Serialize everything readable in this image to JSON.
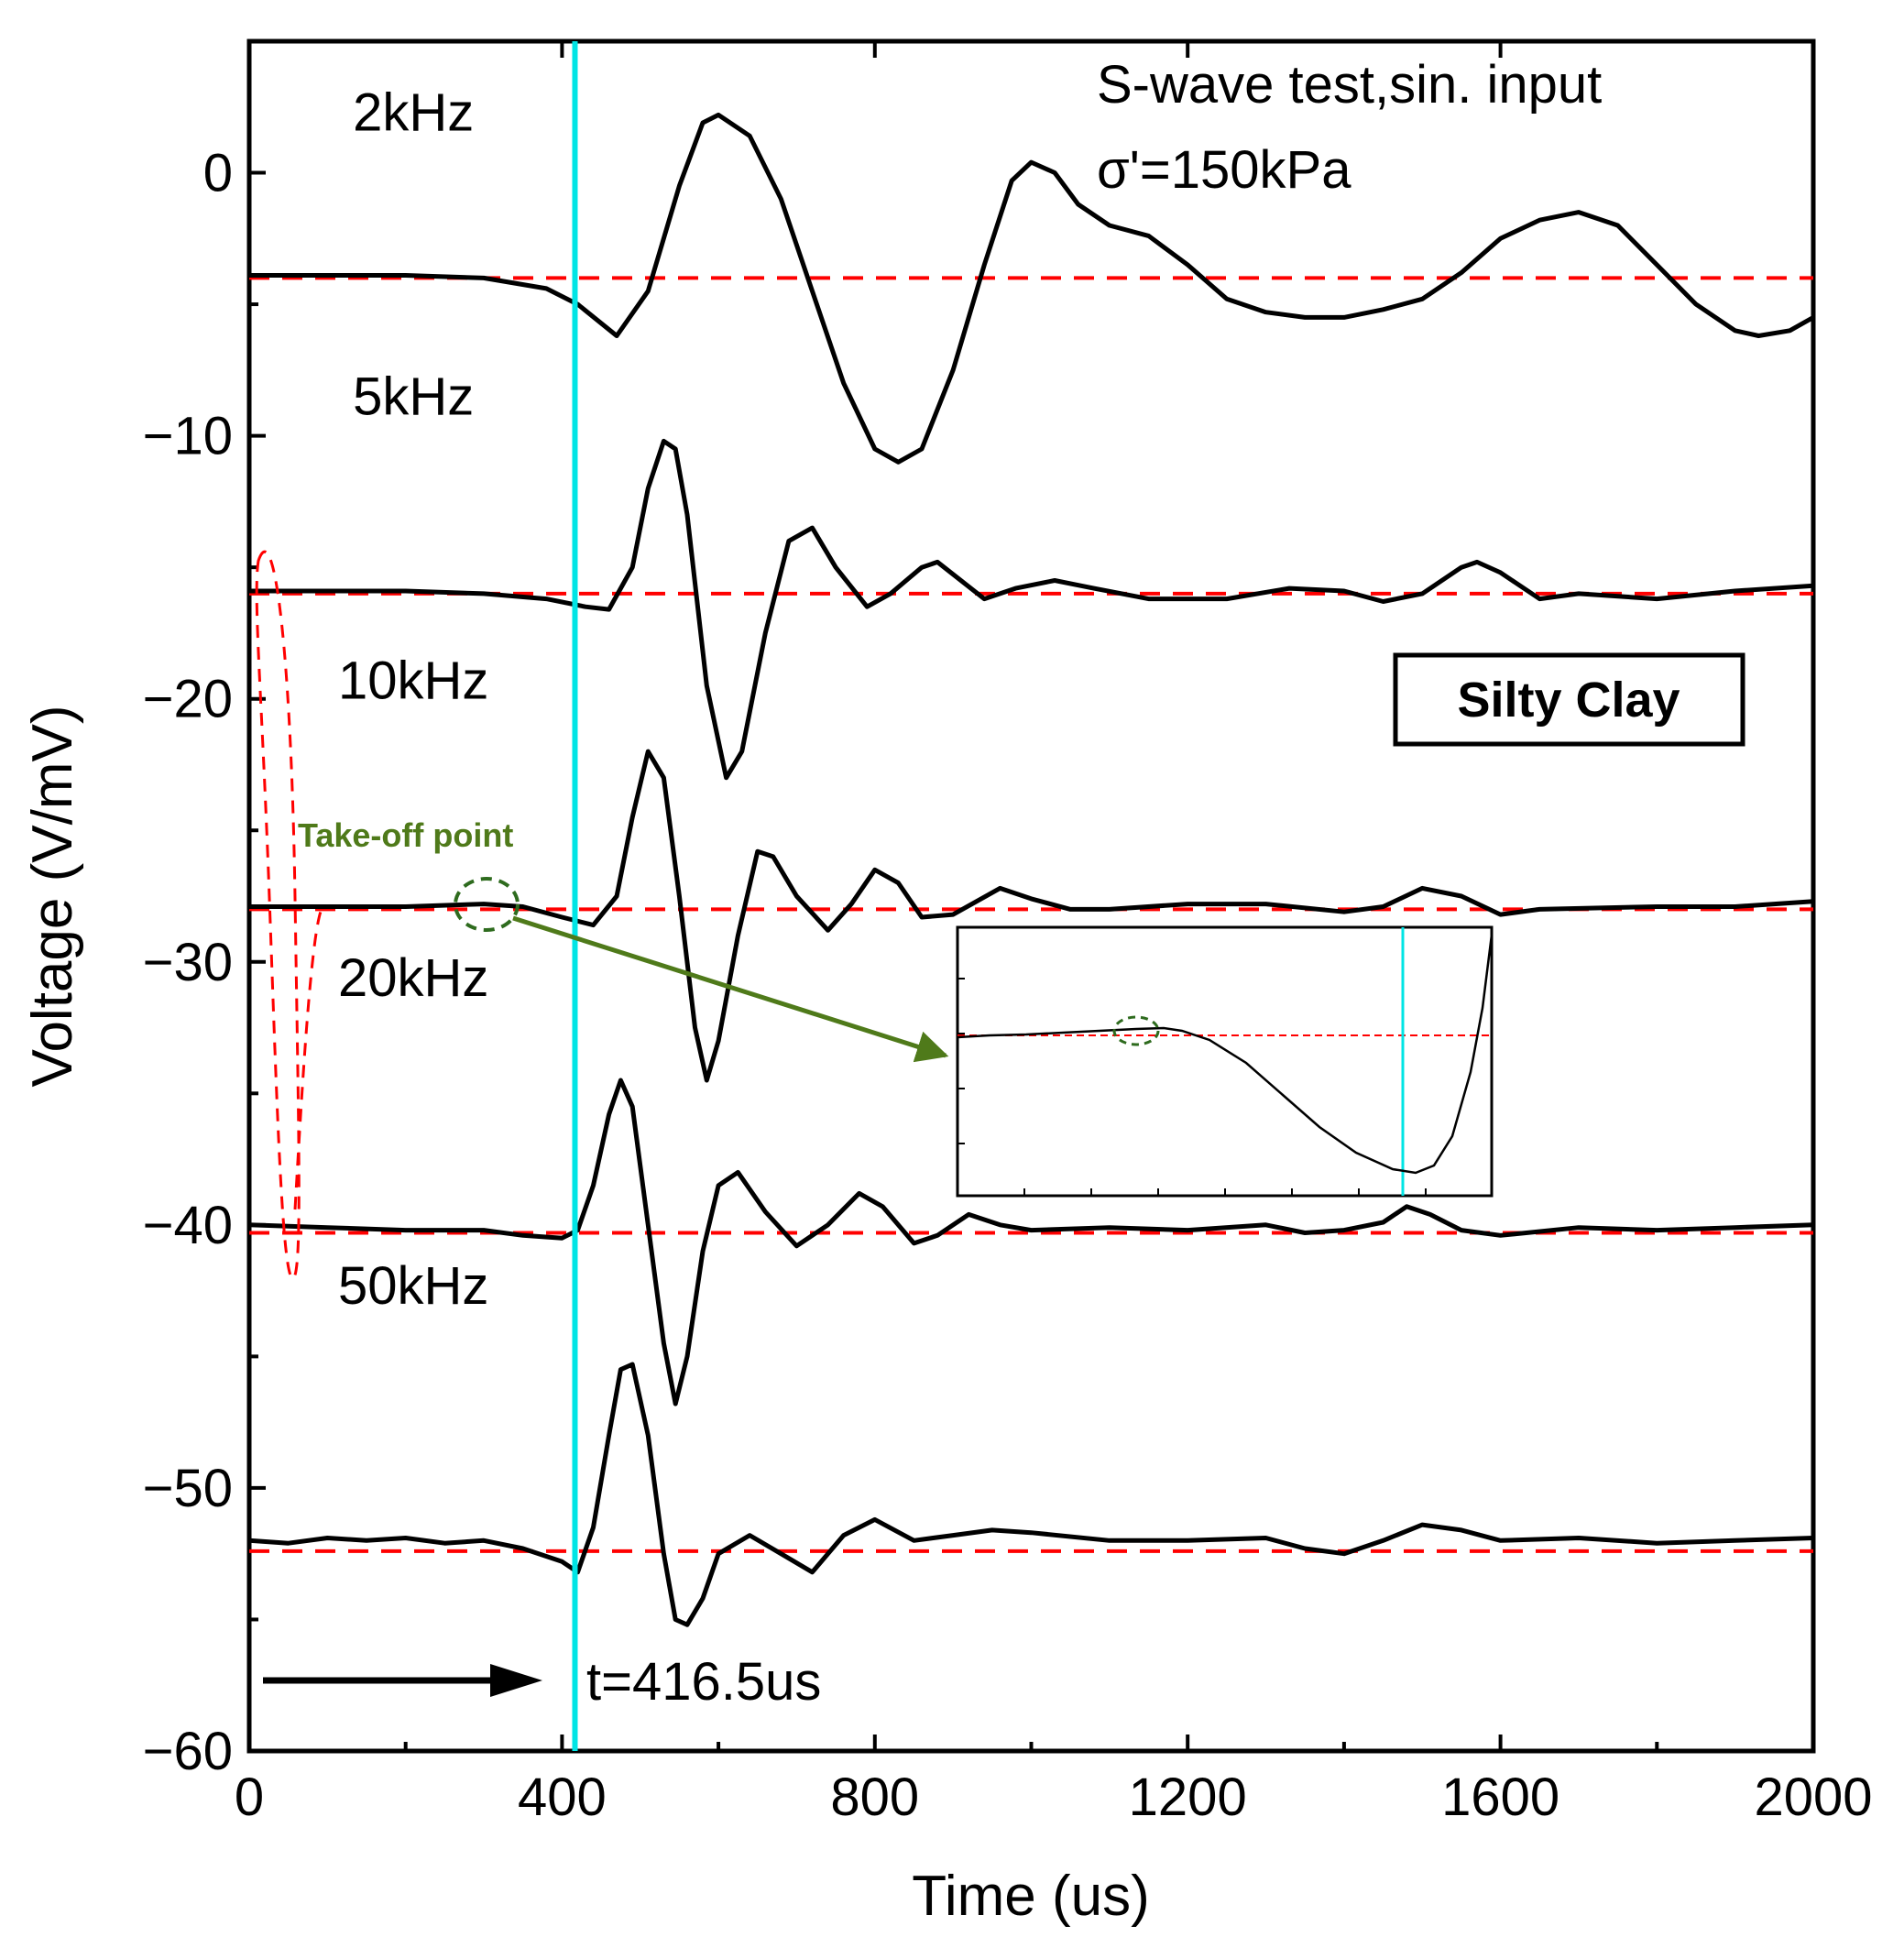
{
  "chart_data": {
    "type": "line",
    "title": "",
    "xlabel": "Time (us)",
    "ylabel": "Voltage (V/mV)",
    "xlim": [
      0,
      2000
    ],
    "ylim": [
      -60,
      5
    ],
    "xticks": [
      0,
      400,
      800,
      1200,
      1600,
      2000
    ],
    "yticks": [
      0,
      -10,
      -20,
      -30,
      -40,
      -50,
      -60
    ],
    "xtick_labels": [
      "0",
      "400",
      "800",
      "1200",
      "1600",
      "2000"
    ],
    "ytick_labels": [
      "0",
      "−10",
      "−20",
      "−30",
      "−40",
      "−50",
      "−60"
    ],
    "annotation_line1": "S-wave test,sin. input",
    "annotation_line2": "σ'=150kPa",
    "material_label": "Silty Clay",
    "takeoff_label": "Take-off point",
    "arrival_label": "t=416.5us",
    "arrival_time": 416.5,
    "colors": {
      "trace": "#000000",
      "baseline": "#ff0000",
      "arrival": "#00e5e5",
      "takeoff": "#4f7a1a"
    },
    "series": [
      {
        "name": "2kHz",
        "baseline": -4.0,
        "label_y": 2.3,
        "points": [
          [
            0,
            -3.9
          ],
          [
            100,
            -3.9
          ],
          [
            200,
            -3.9
          ],
          [
            300,
            -4.0
          ],
          [
            380,
            -4.4
          ],
          [
            420,
            -5.0
          ],
          [
            470,
            -6.2
          ],
          [
            510,
            -4.5
          ],
          [
            550,
            -0.5
          ],
          [
            580,
            1.9
          ],
          [
            600,
            2.2
          ],
          [
            640,
            1.4
          ],
          [
            680,
            -1.0
          ],
          [
            720,
            -4.5
          ],
          [
            760,
            -8.0
          ],
          [
            800,
            -10.5
          ],
          [
            830,
            -11.0
          ],
          [
            860,
            -10.5
          ],
          [
            900,
            -7.5
          ],
          [
            940,
            -3.5
          ],
          [
            975,
            -0.3
          ],
          [
            1000,
            0.4
          ],
          [
            1030,
            0.0
          ],
          [
            1060,
            -1.2
          ],
          [
            1100,
            -2.0
          ],
          [
            1150,
            -2.4
          ],
          [
            1200,
            -3.5
          ],
          [
            1250,
            -4.8
          ],
          [
            1300,
            -5.3
          ],
          [
            1350,
            -5.5
          ],
          [
            1400,
            -5.5
          ],
          [
            1450,
            -5.2
          ],
          [
            1500,
            -4.8
          ],
          [
            1550,
            -3.8
          ],
          [
            1600,
            -2.5
          ],
          [
            1650,
            -1.8
          ],
          [
            1700,
            -1.5
          ],
          [
            1750,
            -2.0
          ],
          [
            1800,
            -3.5
          ],
          [
            1850,
            -5.0
          ],
          [
            1900,
            -6.0
          ],
          [
            1930,
            -6.2
          ],
          [
            1970,
            -6.0
          ],
          [
            2000,
            -5.5
          ]
        ]
      },
      {
        "name": "5kHz",
        "baseline": -16.0,
        "label_y": -8.5,
        "points": [
          [
            0,
            -15.9
          ],
          [
            100,
            -15.9
          ],
          [
            200,
            -15.9
          ],
          [
            300,
            -16.0
          ],
          [
            380,
            -16.2
          ],
          [
            430,
            -16.5
          ],
          [
            460,
            -16.6
          ],
          [
            490,
            -15.0
          ],
          [
            510,
            -12.0
          ],
          [
            530,
            -10.2
          ],
          [
            545,
            -10.5
          ],
          [
            560,
            -13.0
          ],
          [
            585,
            -19.5
          ],
          [
            610,
            -23.0
          ],
          [
            630,
            -22.0
          ],
          [
            660,
            -17.5
          ],
          [
            690,
            -14.0
          ],
          [
            720,
            -13.5
          ],
          [
            750,
            -15.0
          ],
          [
            790,
            -16.5
          ],
          [
            820,
            -16.0
          ],
          [
            860,
            -15.0
          ],
          [
            880,
            -14.8
          ],
          [
            910,
            -15.5
          ],
          [
            940,
            -16.2
          ],
          [
            980,
            -15.8
          ],
          [
            1030,
            -15.5
          ],
          [
            1080,
            -15.8
          ],
          [
            1150,
            -16.2
          ],
          [
            1250,
            -16.2
          ],
          [
            1330,
            -15.8
          ],
          [
            1400,
            -15.9
          ],
          [
            1450,
            -16.3
          ],
          [
            1500,
            -16.0
          ],
          [
            1550,
            -15.0
          ],
          [
            1570,
            -14.8
          ],
          [
            1600,
            -15.2
          ],
          [
            1650,
            -16.2
          ],
          [
            1700,
            -16.0
          ],
          [
            1800,
            -16.2
          ],
          [
            1900,
            -15.9
          ],
          [
            2000,
            -15.7
          ]
        ]
      },
      {
        "name": "10kHz",
        "baseline": -28.0,
        "label_y": -19.3,
        "points": [
          [
            0,
            -27.9
          ],
          [
            100,
            -27.9
          ],
          [
            200,
            -27.9
          ],
          [
            300,
            -27.8
          ],
          [
            350,
            -27.9
          ],
          [
            400,
            -28.3
          ],
          [
            440,
            -28.6
          ],
          [
            470,
            -27.5
          ],
          [
            490,
            -24.5
          ],
          [
            510,
            -22.0
          ],
          [
            530,
            -23.0
          ],
          [
            550,
            -27.5
          ],
          [
            570,
            -32.5
          ],
          [
            585,
            -34.5
          ],
          [
            600,
            -33.0
          ],
          [
            625,
            -29.0
          ],
          [
            650,
            -25.8
          ],
          [
            670,
            -26.0
          ],
          [
            700,
            -27.5
          ],
          [
            740,
            -28.8
          ],
          [
            770,
            -27.8
          ],
          [
            800,
            -26.5
          ],
          [
            830,
            -27.0
          ],
          [
            860,
            -28.3
          ],
          [
            900,
            -28.2
          ],
          [
            960,
            -27.2
          ],
          [
            1000,
            -27.6
          ],
          [
            1050,
            -28.0
          ],
          [
            1100,
            -28.0
          ],
          [
            1200,
            -27.8
          ],
          [
            1300,
            -27.8
          ],
          [
            1400,
            -28.1
          ],
          [
            1450,
            -27.9
          ],
          [
            1500,
            -27.2
          ],
          [
            1550,
            -27.5
          ],
          [
            1600,
            -28.2
          ],
          [
            1650,
            -28.0
          ],
          [
            1800,
            -27.9
          ],
          [
            1900,
            -27.9
          ],
          [
            2000,
            -27.7
          ]
        ]
      },
      {
        "name": "20kHz",
        "baseline": -40.3,
        "label_y": -30.6,
        "points": [
          [
            0,
            -40.0
          ],
          [
            100,
            -40.1
          ],
          [
            200,
            -40.2
          ],
          [
            300,
            -40.2
          ],
          [
            350,
            -40.4
          ],
          [
            400,
            -40.5
          ],
          [
            420,
            -40.2
          ],
          [
            440,
            -38.5
          ],
          [
            460,
            -35.8
          ],
          [
            475,
            -34.5
          ],
          [
            490,
            -35.5
          ],
          [
            510,
            -40.0
          ],
          [
            530,
            -44.5
          ],
          [
            545,
            -46.8
          ],
          [
            560,
            -45.0
          ],
          [
            580,
            -41.0
          ],
          [
            600,
            -38.5
          ],
          [
            625,
            -38.0
          ],
          [
            660,
            -39.5
          ],
          [
            700,
            -40.8
          ],
          [
            740,
            -40.0
          ],
          [
            780,
            -38.8
          ],
          [
            810,
            -39.3
          ],
          [
            850,
            -40.7
          ],
          [
            880,
            -40.4
          ],
          [
            920,
            -39.6
          ],
          [
            960,
            -40.0
          ],
          [
            1000,
            -40.2
          ],
          [
            1100,
            -40.1
          ],
          [
            1200,
            -40.2
          ],
          [
            1300,
            -40.0
          ],
          [
            1350,
            -40.3
          ],
          [
            1400,
            -40.2
          ],
          [
            1450,
            -39.9
          ],
          [
            1480,
            -39.3
          ],
          [
            1510,
            -39.6
          ],
          [
            1550,
            -40.2
          ],
          [
            1600,
            -40.4
          ],
          [
            1700,
            -40.1
          ],
          [
            1800,
            -40.2
          ],
          [
            1900,
            -40.1
          ],
          [
            2000,
            -40.0
          ]
        ]
      },
      {
        "name": "50kHz",
        "baseline": -52.4,
        "label_y": -42.3,
        "points": [
          [
            0,
            -52.0
          ],
          [
            50,
            -52.1
          ],
          [
            100,
            -51.9
          ],
          [
            150,
            -52.0
          ],
          [
            200,
            -51.9
          ],
          [
            250,
            -52.1
          ],
          [
            300,
            -52.0
          ],
          [
            350,
            -52.3
          ],
          [
            400,
            -52.8
          ],
          [
            420,
            -53.2
          ],
          [
            440,
            -51.5
          ],
          [
            460,
            -48.0
          ],
          [
            475,
            -45.5
          ],
          [
            490,
            -45.3
          ],
          [
            510,
            -48.0
          ],
          [
            530,
            -52.5
          ],
          [
            545,
            -55.0
          ],
          [
            560,
            -55.2
          ],
          [
            580,
            -54.2
          ],
          [
            600,
            -52.5
          ],
          [
            640,
            -51.8
          ],
          [
            680,
            -52.5
          ],
          [
            720,
            -53.2
          ],
          [
            760,
            -51.8
          ],
          [
            800,
            -51.2
          ],
          [
            850,
            -52.0
          ],
          [
            900,
            -51.8
          ],
          [
            950,
            -51.6
          ],
          [
            1000,
            -51.7
          ],
          [
            1100,
            -52.0
          ],
          [
            1200,
            -52.0
          ],
          [
            1300,
            -51.9
          ],
          [
            1350,
            -52.3
          ],
          [
            1400,
            -52.5
          ],
          [
            1450,
            -52.0
          ],
          [
            1500,
            -51.4
          ],
          [
            1550,
            -51.6
          ],
          [
            1600,
            -52.0
          ],
          [
            1700,
            -51.9
          ],
          [
            1800,
            -52.1
          ],
          [
            1900,
            -52.0
          ],
          [
            2000,
            -51.9
          ]
        ]
      }
    ]
  }
}
